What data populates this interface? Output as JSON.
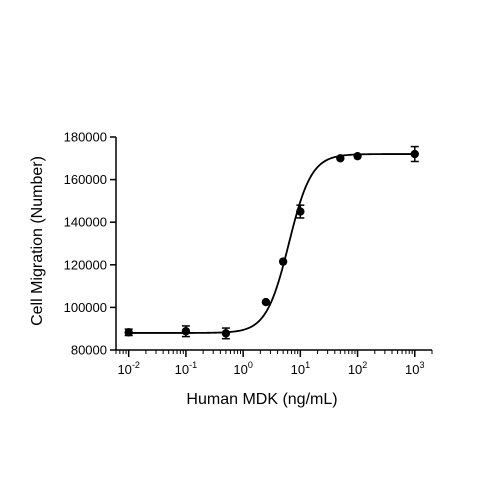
{
  "chart_data": {
    "type": "scatter",
    "xlabel": "Human MDK (ng/mL)",
    "ylabel": "Cell Migration (Number)",
    "x_scale": "log",
    "xlim": [
      0.006,
      2000
    ],
    "ylim": [
      80000,
      180000
    ],
    "y_ticks": [
      80000,
      100000,
      120000,
      140000,
      160000,
      180000
    ],
    "y_tick_labels": [
      "80000",
      "100000",
      "120000",
      "140000",
      "160000",
      "180000"
    ],
    "x_ticks": [
      {
        "value": 0.01,
        "base": "10",
        "exp": "-2"
      },
      {
        "value": 0.1,
        "base": "10",
        "exp": "-1"
      },
      {
        "value": 1,
        "base": "10",
        "exp": "0"
      },
      {
        "value": 10,
        "base": "10",
        "exp": "1"
      },
      {
        "value": 100,
        "base": "10",
        "exp": "2"
      },
      {
        "value": 1000,
        "base": "10",
        "exp": "3"
      }
    ],
    "points": [
      {
        "x": 0.01,
        "y": 88300,
        "err": 1500
      },
      {
        "x": 0.1,
        "y": 88800,
        "err": 2500
      },
      {
        "x": 0.5,
        "y": 87800,
        "err": 2500
      },
      {
        "x": 2.5,
        "y": 102500,
        "err": 0
      },
      {
        "x": 5,
        "y": 121500,
        "err": 0
      },
      {
        "x": 10,
        "y": 145000,
        "err": 3000
      },
      {
        "x": 50,
        "y": 170000,
        "err": 0
      },
      {
        "x": 100,
        "y": 171000,
        "err": 0
      },
      {
        "x": 1000,
        "y": 172000,
        "err": 3500
      }
    ],
    "fit": {
      "bottom": 88000,
      "top": 172000,
      "ec50": 6.3,
      "hill": 2.2
    },
    "colors": {
      "marker": "#000000",
      "line": "#000000"
    }
  }
}
